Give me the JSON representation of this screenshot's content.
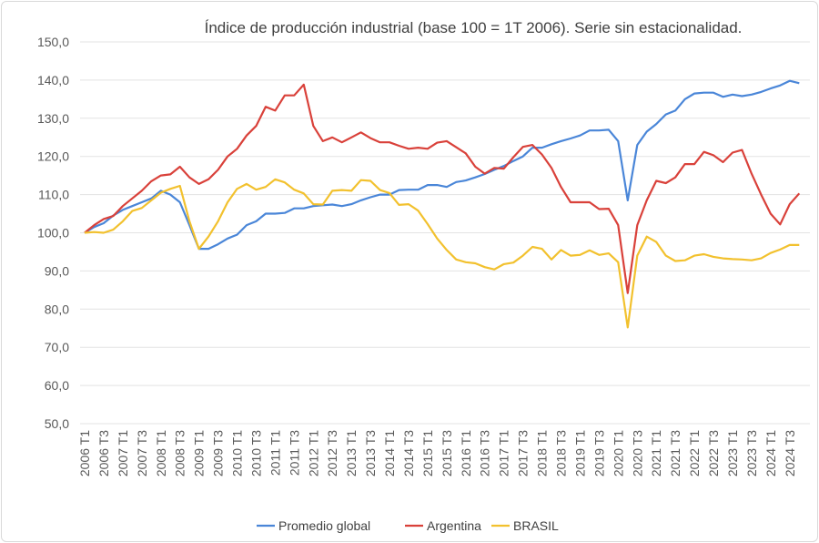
{
  "chart_data": {
    "type": "line",
    "title": "Índice de producción industrial (base 100 = 1T 2006). Serie sin estacionalidad.",
    "xlabel": "",
    "ylabel": "",
    "ylim": [
      50,
      150
    ],
    "y_ticks": [
      "50,0",
      "60,0",
      "70,0",
      "80,0",
      "90,0",
      "100,0",
      "110,0",
      "120,0",
      "130,0",
      "140,0",
      "150,0"
    ],
    "grid": true,
    "legend_position": "bottom",
    "tick_labels": [
      "2006 T1",
      "2006 T3",
      "2007 T1",
      "2007 T3",
      "2008 T1",
      "2008 T3",
      "2009 T1",
      "2009 T3",
      "2010 T1",
      "2010 T3",
      "2011 T1",
      "2011 T3",
      "2012 T1",
      "2012 T3",
      "2013 T1",
      "2013 T3",
      "2014 T1",
      "2014 T3",
      "2015 T1",
      "2015 T3",
      "2016 T1",
      "2016 T3",
      "2017 T1",
      "2017 T3",
      "2018 T1",
      "2018 T3",
      "2019 T1",
      "2019 T3",
      "2020 T1",
      "2020 T3",
      "2021 T1",
      "2021 T3",
      "2022 T1",
      "2022 T3",
      "2023 T1",
      "2023 T3",
      "2024 T1",
      "2024 T3"
    ],
    "series": [
      {
        "name": "Promedio global",
        "color": "#4a86d8",
        "values": [
          100,
          101.5,
          102.5,
          104.5,
          106,
          107,
          108,
          109,
          111,
          110,
          108,
          102,
          95.8,
          95.8,
          97,
          98.5,
          99.5,
          102,
          103,
          105,
          105,
          105.2,
          106.4,
          106.4,
          107,
          107.2,
          107.4,
          107,
          107.5,
          108.5,
          109.3,
          110,
          110,
          111.2,
          111.3,
          111.3,
          112.5,
          112.5,
          112,
          113.3,
          113.7,
          114.5,
          115.4,
          116.5,
          117.5,
          118.8,
          120,
          122.3,
          122.3,
          123.2,
          124,
          124.7,
          125.5,
          126.8,
          126.8,
          127,
          124,
          108.5,
          123,
          126.5,
          128.5,
          131,
          132,
          135,
          136.5,
          136.7,
          136.7,
          135.6,
          136.2,
          135.8,
          136.2,
          136.9,
          137.8,
          138.6,
          139.8,
          139.2
        ]
      },
      {
        "name": "Argentina",
        "color": "#d9413a",
        "values": [
          100,
          102,
          103.6,
          104.4,
          107,
          109,
          111,
          113.5,
          115,
          115.3,
          117.3,
          114.5,
          112.8,
          114,
          116.5,
          120,
          122,
          125.5,
          128,
          133,
          132,
          136,
          136,
          138.8,
          128,
          124,
          125,
          123.7,
          125,
          126.3,
          124.8,
          123.7,
          123.7,
          122.8,
          122,
          122.3,
          122,
          123.6,
          124,
          122.4,
          120.8,
          117.3,
          115.5,
          117,
          116.8,
          119.8,
          122.5,
          123,
          120.5,
          117,
          112,
          108,
          108,
          108,
          106.2,
          106.3,
          102,
          84.2,
          102,
          108.5,
          113.6,
          113,
          114.5,
          118,
          118,
          121.2,
          120.3,
          118.5,
          121,
          121.7,
          115.5,
          110,
          105,
          102.2,
          107.5,
          110.3
        ]
      },
      {
        "name": "BRASIL",
        "color": "#f2c12e",
        "values": [
          100,
          100.2,
          100,
          100.8,
          103,
          105.7,
          106.5,
          108.5,
          110.5,
          111.5,
          112.3,
          103,
          95.8,
          99,
          103,
          108,
          111.5,
          112.8,
          111.3,
          112,
          114,
          113.2,
          111.3,
          110.3,
          107.5,
          107.4,
          111,
          111.2,
          111,
          113.8,
          113.6,
          111.2,
          110.4,
          107.3,
          107.5,
          105.8,
          102.3,
          98.5,
          95.5,
          93,
          92.3,
          92,
          91,
          90.4,
          91.8,
          92.2,
          94,
          96.3,
          95.8,
          93,
          95.5,
          94,
          94.2,
          95.4,
          94.2,
          94.6,
          92.3,
          75.2,
          94,
          99,
          97.6,
          94,
          92.6,
          92.8,
          94,
          94.4,
          93.7,
          93.3,
          93.1,
          93,
          92.8,
          93.3,
          94.7,
          95.6,
          96.8,
          96.8
        ]
      }
    ]
  }
}
